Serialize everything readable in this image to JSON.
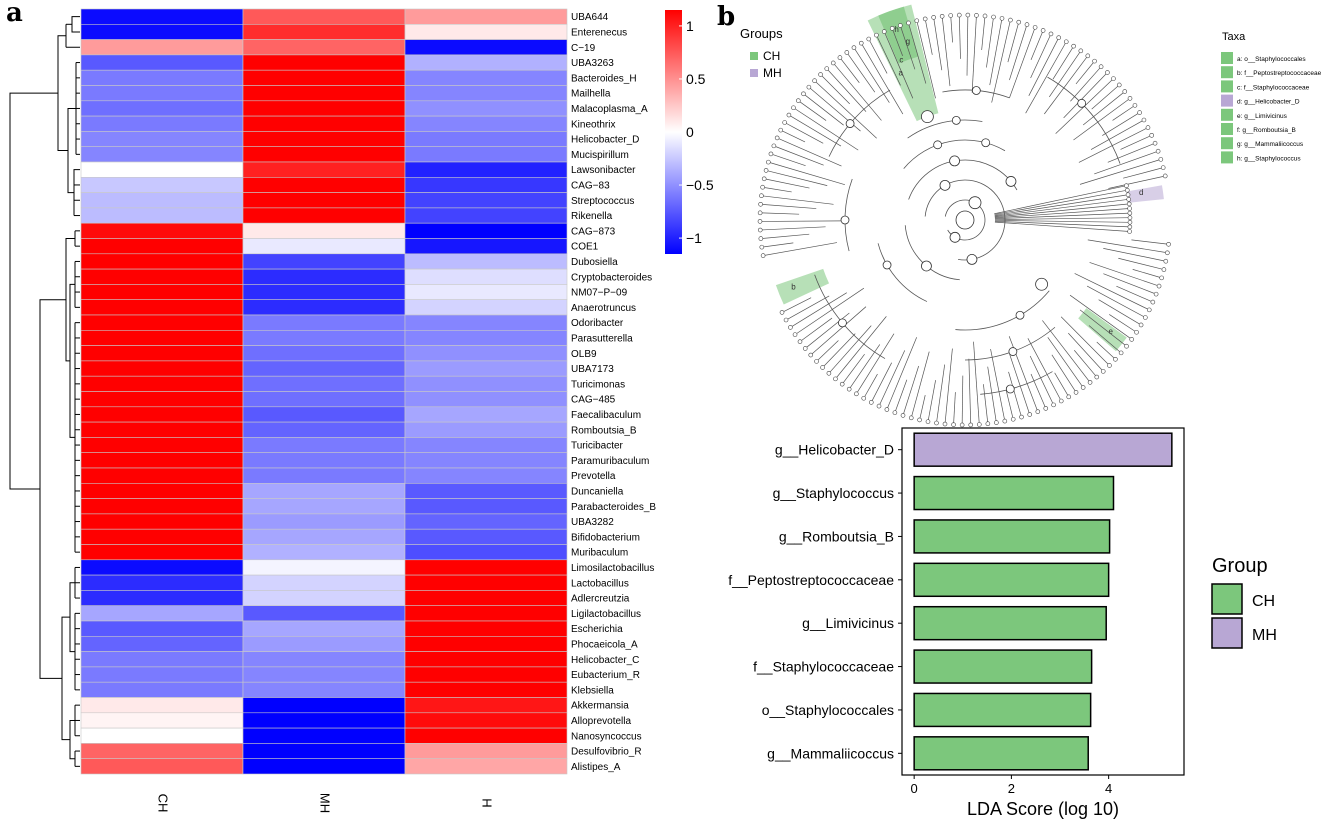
{
  "panel_labels": {
    "a": "a",
    "b": "b"
  },
  "chart_data": [
    {
      "type": "heatmap",
      "columns": [
        "CH",
        "MH",
        "H"
      ],
      "rows": [
        "UBA644",
        "Enterenecus",
        "C−19",
        "UBA3263",
        "Bacteroides_H",
        "Mailhella",
        "Malacoplasma_A",
        "Kineothrix",
        "Helicobacter_D",
        "Mucispirillum",
        "Lawsonibacter",
        "CAG−83",
        "Streptococcus",
        "Rikenella",
        "CAG−873",
        "COE1",
        "Dubosiella",
        "Cryptobacteroides",
        "NM07−P−09",
        "Anaerotruncus",
        "Odoribacter",
        "Parasutterella",
        "OLB9",
        "UBA7173",
        "Turicimonas",
        "CAG−485",
        "Faecalibaculum",
        "Romboutsia_B",
        "Turicibacter",
        "Paramuribaculum",
        "Prevotella",
        "Duncaniella",
        "Parabacteroides_B",
        "UBA3282",
        "Bifidobacterium",
        "Muribaculum",
        "Limosilactobacillus",
        "Lactobacillus",
        "Adlercreutzia",
        "Ligilactobacillus",
        "Escherichia",
        "Phocaeicola_A",
        "Helicobacter_C",
        "Eubacterium_R",
        "Klebsiella",
        "Akkermansia",
        "Alloprevotella",
        "Nanosyncoccus",
        "Desulfovibrio_R",
        "Alistipes_A"
      ],
      "values": [
        [
          -1.1,
          0.75,
          0.45
        ],
        [
          -1.1,
          0.95,
          0.1
        ],
        [
          0.45,
          0.7,
          -1.1
        ],
        [
          -0.75,
          1.15,
          -0.35
        ],
        [
          -0.6,
          1.15,
          -0.55
        ],
        [
          -0.6,
          1.15,
          -0.55
        ],
        [
          -0.65,
          1.15,
          -0.5
        ],
        [
          -0.6,
          1.15,
          -0.55
        ],
        [
          -0.55,
          1.15,
          -0.6
        ],
        [
          -0.55,
          1.15,
          -0.6
        ],
        [
          0.0,
          1.0,
          -1.0
        ],
        [
          -0.25,
          1.15,
          -0.9
        ],
        [
          -0.3,
          1.15,
          -0.85
        ],
        [
          -0.3,
          1.15,
          -0.85
        ],
        [
          1.1,
          0.1,
          -1.15
        ],
        [
          1.15,
          -0.1,
          -1.05
        ],
        [
          1.15,
          -0.85,
          -0.3
        ],
        [
          1.15,
          -0.95,
          -0.15
        ],
        [
          1.15,
          -0.95,
          -0.1
        ],
        [
          1.15,
          -0.95,
          -0.2
        ],
        [
          1.15,
          -0.6,
          -0.55
        ],
        [
          1.15,
          -0.6,
          -0.55
        ],
        [
          1.15,
          -0.65,
          -0.5
        ],
        [
          1.15,
          -0.7,
          -0.45
        ],
        [
          1.15,
          -0.65,
          -0.5
        ],
        [
          1.15,
          -0.65,
          -0.5
        ],
        [
          1.15,
          -0.75,
          -0.4
        ],
        [
          1.15,
          -0.7,
          -0.45
        ],
        [
          1.15,
          -0.6,
          -0.55
        ],
        [
          1.15,
          -0.6,
          -0.55
        ],
        [
          1.15,
          -0.6,
          -0.55
        ],
        [
          1.15,
          -0.4,
          -0.75
        ],
        [
          1.15,
          -0.4,
          -0.75
        ],
        [
          1.15,
          -0.45,
          -0.7
        ],
        [
          1.15,
          -0.4,
          -0.75
        ],
        [
          1.15,
          -0.35,
          -0.8
        ],
        [
          -1.1,
          -0.05,
          1.15
        ],
        [
          -0.95,
          -0.2,
          1.15
        ],
        [
          -0.95,
          -0.2,
          1.15
        ],
        [
          -0.4,
          -0.75,
          1.15
        ],
        [
          -0.75,
          -0.4,
          1.15
        ],
        [
          -0.7,
          -0.45,
          1.15
        ],
        [
          -0.6,
          -0.55,
          1.15
        ],
        [
          -0.6,
          -0.55,
          1.15
        ],
        [
          -0.6,
          -0.55,
          1.15
        ],
        [
          0.1,
          -1.15,
          1.05
        ],
        [
          0.05,
          -1.15,
          1.1
        ],
        [
          0.0,
          -1.15,
          1.15
        ],
        [
          0.7,
          -1.15,
          0.45
        ],
        [
          0.75,
          -1.15,
          0.4
        ]
      ],
      "color_scale": {
        "low": "#0000ff",
        "mid": "#ffffff",
        "high": "#ff0000",
        "min": -1.15,
        "max": 1.15
      },
      "colorbar_ticks": [
        "1",
        "0.5",
        "0",
        "−0.5",
        "−1"
      ],
      "colorbar_values": [
        1,
        0.5,
        0,
        -0.5,
        -1
      ],
      "row_dendrogram": true
    },
    {
      "type": "cladogram",
      "groups_title": "Groups",
      "groups": [
        {
          "name": "CH",
          "color": "#7cc77c"
        },
        {
          "name": "MH",
          "color": "#b8a7d4"
        }
      ],
      "taxa_title": "Taxa",
      "taxa": [
        {
          "label": "a: o__Staphylococcales",
          "color": "#7cc77c"
        },
        {
          "label": "b: f__Peptostreptococcaceae",
          "color": "#7cc77c"
        },
        {
          "label": "c: f__Staphylococcaceae",
          "color": "#7cc77c"
        },
        {
          "label": "d: g__Helicobacter_D",
          "color": "#b8a7d4"
        },
        {
          "label": "e: g__Limivicinus",
          "color": "#7cc77c"
        },
        {
          "label": "f: g__Romboutsia_B",
          "color": "#7cc77c"
        },
        {
          "label": "g: g__Mammaliicoccus",
          "color": "#7cc77c"
        },
        {
          "label": "h: g__Staphylococcus",
          "color": "#7cc77c"
        }
      ],
      "highlight_labels": [
        "h",
        "g",
        "c",
        "a",
        "d",
        "b",
        "e"
      ]
    },
    {
      "type": "bar",
      "orientation": "horizontal",
      "categories": [
        "g__Helicobacter_D",
        "g__Staphylococcus",
        "g__Romboutsia_B",
        "f__Peptostreptococcaceae",
        "g__Limivicinus",
        "f__Staphylococcaceae",
        "o__Staphylococcales",
        "g__Mammaliicoccus"
      ],
      "values": [
        5.3,
        4.1,
        4.02,
        4.0,
        3.95,
        3.65,
        3.63,
        3.58
      ],
      "groups": [
        "MH",
        "CH",
        "CH",
        "CH",
        "CH",
        "CH",
        "CH",
        "CH"
      ],
      "xlabel": "LDA Score (log 10)",
      "xticks": [
        0,
        2,
        4
      ],
      "xlim": [
        -0.25,
        5.55
      ],
      "legend_title": "Group",
      "legend": [
        {
          "name": "CH",
          "color": "#7cc77c"
        },
        {
          "name": "MH",
          "color": "#b8a7d4"
        }
      ]
    }
  ]
}
